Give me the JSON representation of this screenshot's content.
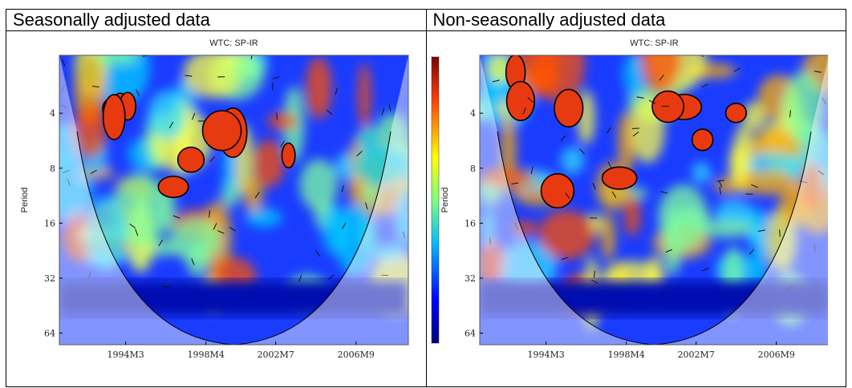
{
  "headers": {
    "left": "Seasonally adjusted data",
    "right": "Non-seasonally adjusted data"
  },
  "chart_data": [
    {
      "type": "heatmap",
      "title": "WTC: SP-IR",
      "ylabel": "Period",
      "xlabel": "",
      "y_scale": "log2",
      "y_ticks": [
        "4",
        "8",
        "16",
        "32",
        "64"
      ],
      "x_ticks": [
        "1994M3",
        "1998M4",
        "2002M7",
        "2006M9"
      ],
      "colorbar": true,
      "colormap": "jet",
      "cone_of_influence": true
    },
    {
      "type": "heatmap",
      "title": "WTC: SP-IR",
      "ylabel": "Period",
      "xlabel": "",
      "y_scale": "log2",
      "y_ticks": [
        "4",
        "8",
        "16",
        "32",
        "64"
      ],
      "x_ticks": [
        "1994M3",
        "1998M4",
        "2002M7",
        "2006M9"
      ],
      "colorbar": false,
      "colormap": "jet",
      "cone_of_influence": true
    }
  ]
}
